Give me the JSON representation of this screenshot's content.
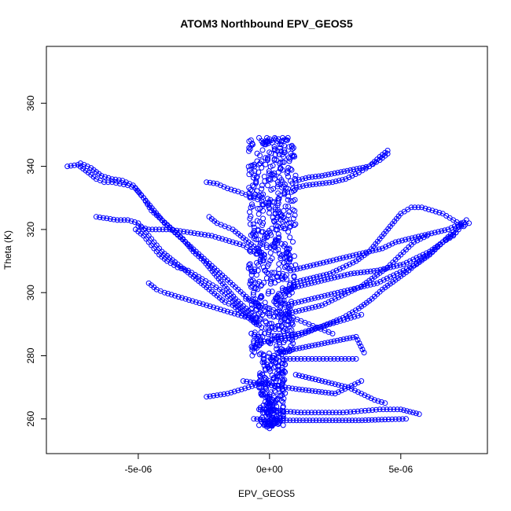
{
  "chart_data": {
    "type": "scatter",
    "title": "ATOM3 Northbound EPV_GEOS5",
    "xlabel": "EPV_GEOS5",
    "ylabel": "Theta (K)",
    "xlim": [
      -8.5e-06,
      8.3e-06
    ],
    "ylim": [
      249,
      378
    ],
    "xticks": [
      {
        "value": -5e-06,
        "label": "-5e-06"
      },
      {
        "value": 0,
        "label": "0e+00"
      },
      {
        "value": 5e-06,
        "label": "5e-06"
      }
    ],
    "yticks": [
      {
        "value": 260,
        "label": "260"
      },
      {
        "value": 280,
        "label": "280"
      },
      {
        "value": 300,
        "label": "300"
      },
      {
        "value": 320,
        "label": "320"
      },
      {
        "value": 340,
        "label": "340"
      },
      {
        "value": 360,
        "label": "360"
      }
    ],
    "grid": false,
    "legend": "none",
    "color": "#0000ff",
    "marker": "open-circle",
    "series": [
      {
        "x": [
          -7.7e-06,
          -7.3e-06,
          -6.9e-06,
          -6.6e-06,
          -6.3e-06,
          -6e-06,
          -5.7e-06,
          -5.4e-06,
          -5.1e-06,
          -4.8e-06,
          -4.5e-06,
          -4.1e-06,
          -3.7e-06,
          -3.3e-06,
          -2.9e-06,
          -2.5e-06,
          -2.1e-06,
          -1.7e-06,
          -1.3e-06,
          -9e-07,
          -5e-07
        ],
        "y": [
          340,
          340.5,
          338,
          336,
          335,
          335,
          334.5,
          334,
          333,
          330,
          326,
          323,
          320,
          317,
          313,
          310,
          306,
          302,
          298,
          295,
          292
        ]
      },
      {
        "x": [
          -7.2e-06,
          -6.8e-06,
          -6.4e-06,
          -6e-06,
          -5.6e-06,
          -5.2e-06,
          -4.8e-06,
          -4.4e-06,
          -4e-06,
          -3.6e-06,
          -3.2e-06,
          -2.8e-06,
          -2.4e-06,
          -2e-06,
          -1.6e-06,
          -1.2e-06,
          -8e-07,
          -4e-07
        ],
        "y": [
          341,
          339.5,
          337,
          336,
          335.5,
          334,
          330,
          326,
          322,
          319,
          316,
          313,
          310,
          307,
          304,
          301,
          298,
          296
        ]
      },
      {
        "x": [
          -6.6e-06,
          -6.2e-06,
          -5.8e-06,
          -5.4e-06,
          -5e-06,
          -4.7e-06,
          -4.4e-06,
          -4.1e-06,
          -3.8e-06,
          -3.5e-06,
          -3.2e-06,
          -2.9e-06,
          -2.6e-06,
          -2.3e-06,
          -2e-06,
          -1.7e-06,
          -1.4e-06,
          -1.1e-06,
          -8e-07,
          -5e-07
        ],
        "y": [
          324,
          323.5,
          323,
          323,
          322,
          319,
          316,
          313,
          311,
          309,
          307,
          305,
          303,
          301,
          299,
          297,
          296,
          294,
          292,
          290
        ]
      },
      {
        "x": [
          -5.1e-06,
          -4.8e-06,
          -4.5e-06,
          -4.2e-06,
          -3.9e-06,
          -3.5e-06,
          -3.1e-06,
          -2.7e-06,
          -2.3e-06,
          -1.9e-06,
          -1.5e-06,
          -1.1e-06,
          -7e-07,
          -3e-07
        ],
        "y": [
          320,
          318,
          315,
          312,
          310,
          308,
          307,
          305,
          303,
          301,
          298,
          295,
          292,
          289
        ]
      },
      {
        "x": [
          -5e-06,
          -4.6e-06,
          -4.2e-06,
          -3.8e-06,
          -3.4e-06,
          -3e-06,
          -2.6e-06,
          -2.2e-06,
          -1.8e-06,
          -1.4e-06,
          -1e-06,
          -6e-07,
          -2e-07
        ],
        "y": [
          321,
          320,
          320,
          320,
          319.5,
          319,
          318.5,
          318,
          317,
          316,
          315,
          313,
          311
        ]
      },
      {
        "x": [
          -4.6e-06,
          -4.3e-06,
          -4e-06,
          -3.6e-06,
          -3.2e-06,
          -2.8e-06,
          -2.4e-06,
          -2e-06,
          -1.6e-06,
          -1.2e-06,
          -8e-07,
          -4e-07
        ],
        "y": [
          303,
          301,
          300,
          299,
          298,
          297,
          296,
          295,
          294,
          293,
          292,
          291
        ]
      },
      {
        "x": [
          -2.3e-06,
          -2e-06,
          -1.7e-06,
          -1.4e-06,
          -1.1e-06,
          -8e-07,
          -5e-07,
          -2e-07
        ],
        "y": [
          324,
          322,
          321,
          320,
          318,
          316,
          314,
          312
        ]
      },
      {
        "x": [
          -2.4e-06,
          -2e-06,
          -1.6e-06,
          -1.2e-06,
          -9e-07,
          -6e-07,
          -3e-07
        ],
        "y": [
          335,
          334.5,
          333,
          332,
          331,
          330,
          329
        ]
      },
      {
        "x": [
          9e-07,
          1.4e-06,
          1.9e-06,
          2.4e-06,
          2.9e-06,
          3.4e-06,
          3.8e-06,
          4.2e-06,
          4.5e-06
        ],
        "y": [
          333,
          334,
          334.5,
          335,
          336,
          338,
          340,
          342,
          344
        ]
      },
      {
        "x": [
          1e-06,
          1.5e-06,
          2e-06,
          2.6e-06,
          3.2e-06,
          3.8e-06,
          4.2e-06,
          4.5e-06
        ],
        "y": [
          335.5,
          336.5,
          337,
          338,
          339,
          340,
          343,
          345
        ]
      },
      {
        "x": [
          8e-07,
          1.3e-06,
          1.8e-06,
          2.3e-06,
          2.8e-06,
          3.3e-06,
          3.8e-06,
          4.2e-06,
          4.6e-06,
          5e-06,
          5.4e-06,
          5.8e-06,
          6.2e-06,
          6.6e-06,
          7e-06,
          7.4e-06
        ],
        "y": [
          303,
          304,
          305,
          306,
          308,
          310,
          313,
          317,
          321,
          325,
          327,
          327,
          326,
          325,
          323,
          321
        ]
      },
      {
        "x": [
          8e-07,
          1.3e-06,
          1.8e-06,
          2.3e-06,
          2.8e-06,
          3.3e-06,
          3.8e-06,
          4.3e-06,
          4.8e-06,
          5.3e-06,
          5.8e-06,
          6.3e-06,
          6.8e-06,
          7.3e-06
        ],
        "y": [
          307,
          308,
          309,
          310,
          311,
          312,
          313,
          314,
          316,
          317,
          318,
          319,
          320,
          322
        ]
      },
      {
        "x": [
          6e-07,
          1.1e-06,
          1.6e-06,
          2.1e-06,
          2.6e-06,
          3.1e-06,
          3.6e-06,
          4.1e-06,
          4.6e-06,
          5.1e-06,
          5.6e-06,
          6.1e-06,
          6.6e-06,
          7.1e-06,
          7.5e-06
        ],
        "y": [
          301,
          302,
          303,
          304,
          305,
          306,
          306.5,
          307,
          308,
          309,
          311,
          313,
          316,
          320,
          323
        ]
      },
      {
        "x": [
          6e-07,
          1.1e-06,
          1.6e-06,
          2.1e-06,
          2.6e-06,
          3.1e-06,
          3.6e-06,
          4.1e-06,
          4.6e-06,
          5.1e-06,
          5.6e-06,
          6.1e-06,
          6.6e-06,
          7.1e-06
        ],
        "y": [
          296,
          297,
          298,
          299,
          300,
          301,
          302,
          303,
          305,
          307,
          309,
          312,
          316,
          319
        ]
      },
      {
        "x": [
          5e-07,
          1e-06,
          1.5e-06,
          2e-06,
          2.5e-06,
          3e-06,
          3.5e-06,
          4e-06,
          4.5e-06,
          5e-06,
          5.5e-06,
          6e-06
        ],
        "y": [
          293,
          294,
          295,
          296,
          298,
          300,
          302,
          305,
          308,
          312,
          316,
          318
        ]
      },
      {
        "x": [
          3e-07,
          7e-07,
          1.1e-06,
          1.5e-06,
          1.9e-06,
          2.3e-06,
          2.7e-06,
          3.1e-06,
          3.5e-06
        ],
        "y": [
          286,
          286.5,
          287,
          288,
          289,
          290,
          291,
          292,
          293
        ]
      },
      {
        "x": [
          -6e-07,
          -2e-07,
          2e-07,
          6e-07,
          1e-06,
          1.6e-06,
          2.2e-06,
          2.8e-06,
          3.4e-06,
          3.9e-06,
          4.3e-06,
          4.8e-06,
          5.3e-06,
          5.7e-06,
          6.2e-06,
          6.6e-06,
          7e-06,
          7.3e-06,
          7.6e-06
        ],
        "y": [
          284,
          284.5,
          285,
          285.5,
          286,
          288,
          290,
          292,
          295,
          298,
          301,
          304,
          307,
          310,
          313,
          316,
          318,
          321,
          322
        ]
      },
      {
        "x": [
          -1e-06,
          -6e-07,
          -2e-07,
          2e-07,
          6e-07,
          1e-06,
          1.5e-06,
          2e-06,
          2.5e-06,
          3e-06,
          3.5e-06
        ],
        "y": [
          272,
          271.5,
          271,
          270.5,
          270,
          269.5,
          269,
          268.5,
          268,
          270,
          272
        ]
      },
      {
        "x": [
          -2.4e-06,
          -2e-06,
          -1.6e-06,
          -1.2e-06,
          -8e-07,
          -4e-07,
          0.0
        ],
        "y": [
          267,
          267.5,
          268,
          269,
          270,
          271,
          272
        ]
      },
      {
        "x": [
          -4e-07,
          4e-07,
          1.2e-06,
          2e-06,
          2.8e-06,
          3.5e-06,
          4.2e-06,
          5e-06,
          5.7e-06
        ],
        "y": [
          263,
          262.5,
          262,
          262,
          262,
          262.5,
          263,
          263,
          261.5
        ]
      },
      {
        "x": [
          -6e-07,
          4e-07,
          1.4e-06,
          2.4e-06,
          3.4e-06,
          4.4e-06,
          5.2e-06
        ],
        "y": [
          260,
          259.5,
          259.5,
          259.5,
          259.5,
          259.8,
          260
        ]
      },
      {
        "x": [
          5e-07,
          1.2e-06,
          1.9e-06,
          2.6e-06,
          3.3e-06
        ],
        "y": [
          279,
          279,
          279,
          279,
          279
        ]
      },
      {
        "x": [
          3e-07,
          9e-07,
          1.5e-06,
          2.1e-06,
          2.7e-06,
          3.3e-06,
          3.6e-06
        ],
        "y": [
          281,
          282,
          283,
          284,
          285,
          286,
          281
        ]
      },
      {
        "x": [
          1e-06,
          1.5e-06,
          2e-06,
          2.5e-06,
          3e-06,
          3.5e-06,
          4e-06,
          4.4e-06
        ],
        "y": [
          274,
          273,
          272,
          271,
          270,
          268,
          266,
          265
        ]
      },
      {
        "x": [
          -9e-07,
          -6e-07,
          -3e-07,
          0.0,
          3e-07,
          6e-07,
          9e-07,
          1.2e-06,
          1.5e-06,
          1.8e-06,
          2.1e-06,
          2.4e-06
        ],
        "y": [
          298,
          297,
          296,
          295,
          294,
          293,
          292,
          291,
          290,
          289,
          288,
          287
        ]
      },
      {
        "x": [
          -4e-07,
          -3e-07,
          -2e-07,
          -1e-07,
          0.0,
          1e-07,
          2e-07,
          3e-07,
          4e-07,
          5e-07,
          6e-07,
          7e-07
        ],
        "y": [
          349,
          348,
          347,
          349,
          348,
          347.5,
          349,
          348,
          347,
          349,
          348.5,
          349
        ]
      },
      {
        "x": [
          -2e-07,
          0.0,
          2e-07,
          -1e-07,
          1e-07,
          -3e-07,
          3e-07,
          0.0,
          -2e-07,
          2e-07,
          0.0,
          -1e-07
        ],
        "y": [
          258,
          257,
          258.5,
          257.5,
          258,
          259,
          259,
          261,
          262,
          263,
          265,
          267
        ]
      }
    ]
  }
}
